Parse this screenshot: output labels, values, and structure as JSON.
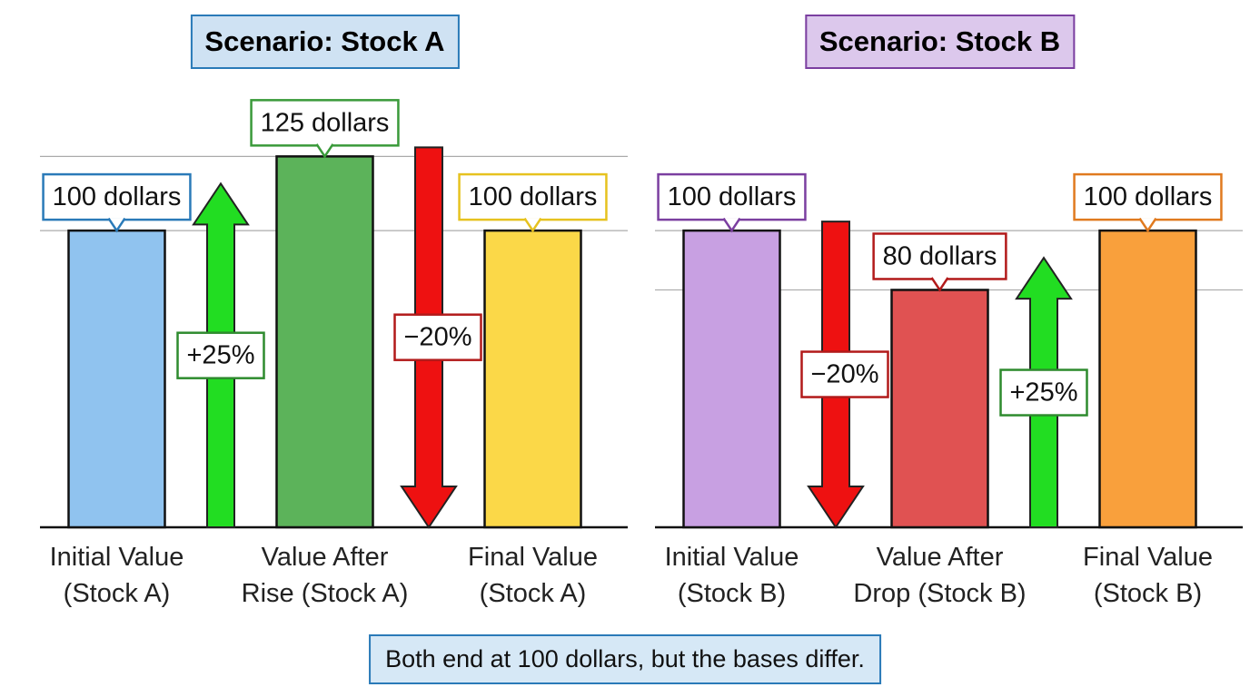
{
  "chart_data": [
    {
      "type": "bar",
      "title": "Scenario: Stock A",
      "title_fill": "#cfe2f3",
      "title_border": "#2a7ab8",
      "categories": [
        "Initial Value\n(Stock A)",
        "Value After\nRise (Stock A)",
        "Final Value\n(Stock A)"
      ],
      "values": [
        100,
        125,
        100
      ],
      "value_labels": [
        "100 dollars",
        "125 dollars",
        "100 dollars"
      ],
      "colors": [
        "#90c3ef",
        "#5cb35a",
        "#fbd848"
      ],
      "label_colors": [
        "#2a7ab8",
        "#3a9a3a",
        "#e6c21f"
      ],
      "ylim": [
        0,
        130
      ],
      "grid": true,
      "annotations": [
        {
          "text": "+25%",
          "color": "#22dd22",
          "border": "#2e8b2e",
          "direction": "up"
        },
        {
          "text": "−20%",
          "color": "#ee1111",
          "border": "#b21a1a",
          "direction": "down"
        }
      ]
    },
    {
      "type": "bar",
      "title": "Scenario: Stock B",
      "title_fill": "#dcc8ec",
      "title_border": "#7b3fa0",
      "categories": [
        "Initial Value\n(Stock B)",
        "Value After\nDrop (Stock B)",
        "Final Value\n(Stock B)"
      ],
      "values": [
        100,
        80,
        100
      ],
      "value_labels": [
        "100 dollars",
        "80 dollars",
        "100 dollars"
      ],
      "colors": [
        "#c8a0e2",
        "#e05252",
        "#f9a03c"
      ],
      "label_colors": [
        "#7b3fa0",
        "#b21a1a",
        "#e07a1f"
      ],
      "ylim": [
        0,
        130
      ],
      "grid": true,
      "annotations": [
        {
          "text": "−20%",
          "color": "#ee1111",
          "border": "#b21a1a",
          "direction": "down"
        },
        {
          "text": "+25%",
          "color": "#22dd22",
          "border": "#2e8b2e",
          "direction": "up"
        }
      ]
    }
  ],
  "caption": "Both end at 100 dollars, but the bases differ."
}
